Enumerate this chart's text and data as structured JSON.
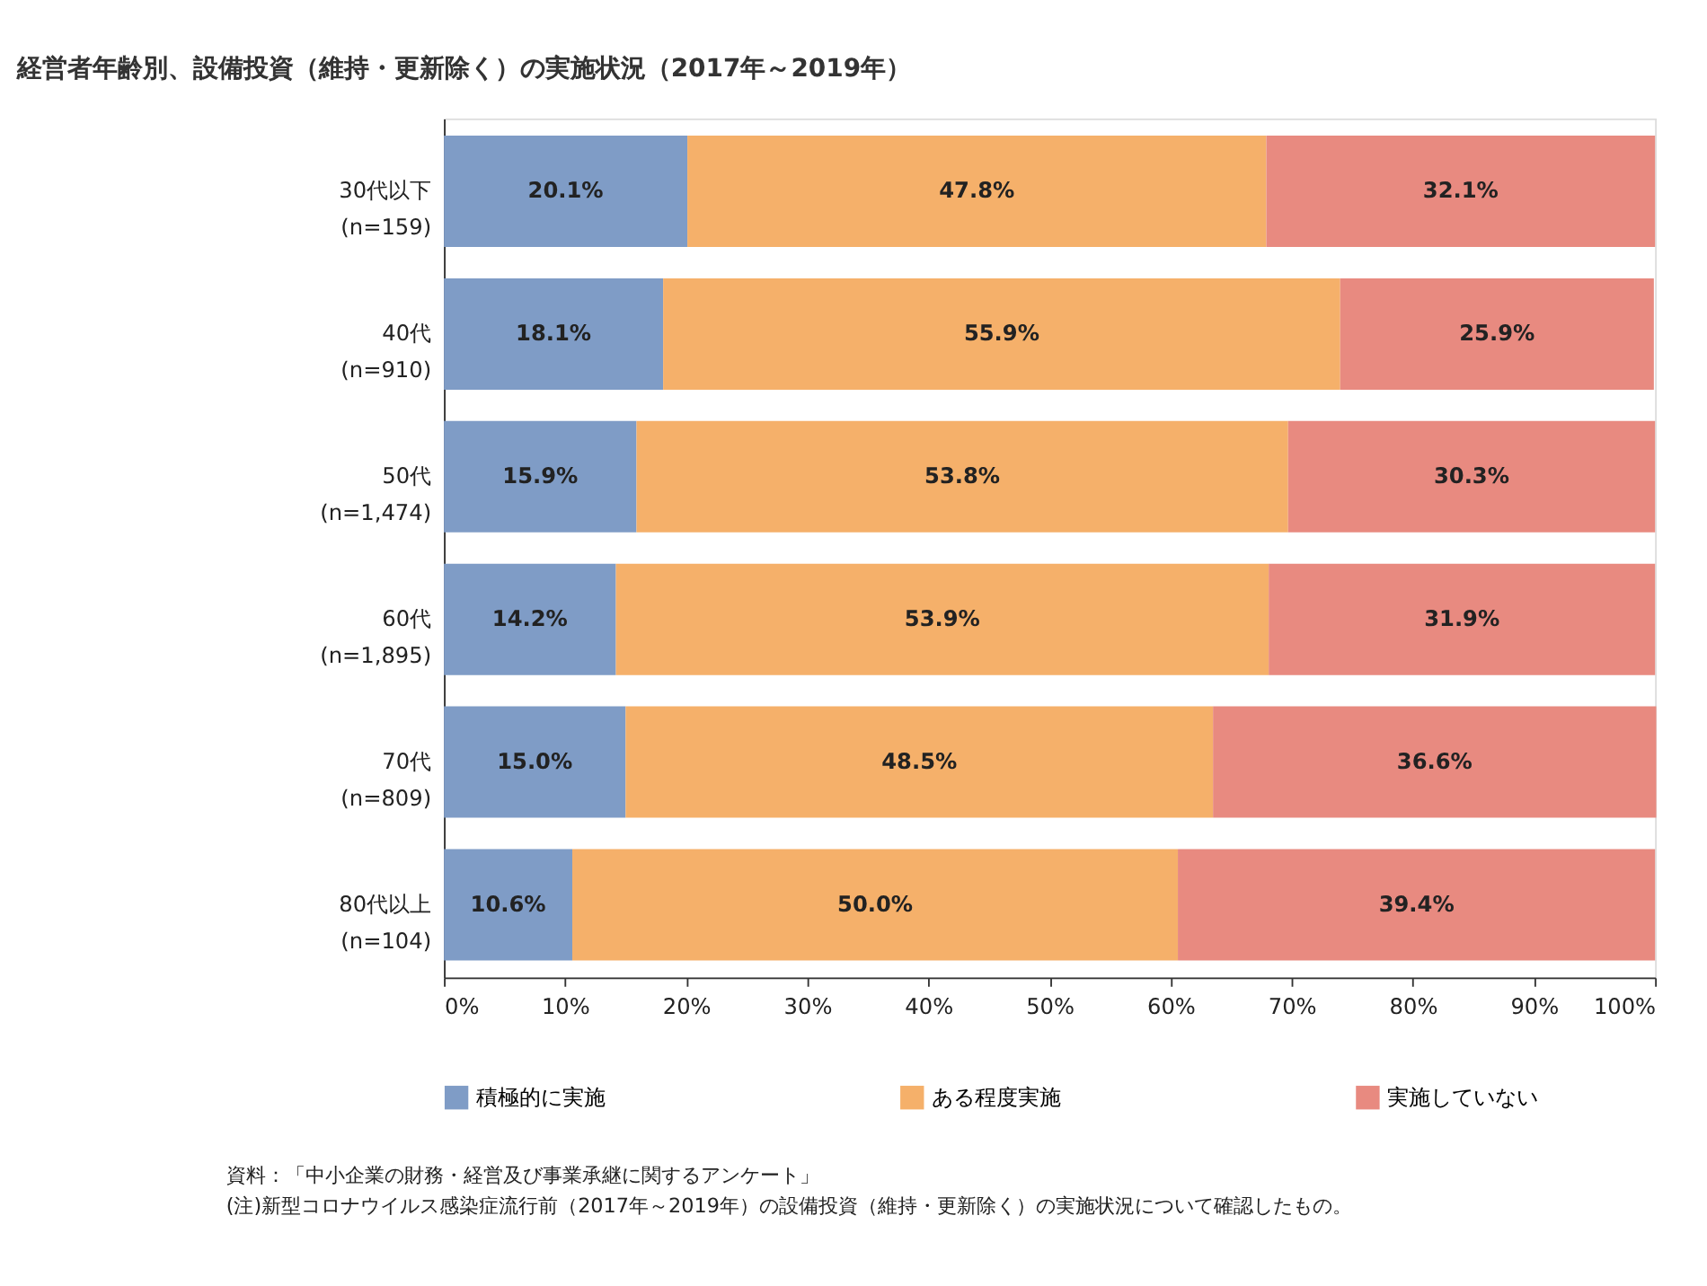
{
  "chart_data": {
    "type": "bar",
    "orientation": "horizontal",
    "stacked": true,
    "title": "経営者年齢別、設備投資（維持・更新除く）の実施状況（2017年～2019年）",
    "categories": [
      "30代以下\n(n=159)",
      "40代\n(n=910)",
      "50代\n(n=1,474)",
      "60代\n(n=1,895)",
      "70代\n(n=809)",
      "80代以上\n(n=104)"
    ],
    "series": [
      {
        "name": "積極的に実施",
        "color": "#7f9cc6",
        "values": [
          20.1,
          18.1,
          15.9,
          14.2,
          15.0,
          10.6
        ],
        "value_labels": [
          "20.1%",
          "18.1%",
          "15.9%",
          "14.2%",
          "15.0%",
          "10.6%"
        ]
      },
      {
        "name": "ある程度実施",
        "color": "#f5b06a",
        "values": [
          47.8,
          55.9,
          53.8,
          53.9,
          48.5,
          50.0
        ],
        "value_labels": [
          "47.8%",
          "55.9%",
          "53.8%",
          "53.9%",
          "48.5%",
          "50.0%"
        ]
      },
      {
        "name": "実施していない",
        "color": "#e88a80",
        "values": [
          32.1,
          25.9,
          30.3,
          31.9,
          36.6,
          39.4
        ],
        "value_labels": [
          "32.1%",
          "25.9%",
          "30.3%",
          "31.9%",
          "36.6%",
          "39.4%"
        ]
      }
    ],
    "xlim": [
      0,
      100
    ],
    "xticks": [
      {
        "value": 0,
        "label": "0%"
      },
      {
        "value": 10,
        "label": "10%"
      },
      {
        "value": 20,
        "label": "20%"
      },
      {
        "value": 30,
        "label": "30%"
      },
      {
        "value": 40,
        "label": "40%"
      },
      {
        "value": 50,
        "label": "50%"
      },
      {
        "value": 60,
        "label": "60%"
      },
      {
        "value": 70,
        "label": "70%"
      },
      {
        "value": 80,
        "label": "80%"
      },
      {
        "value": 90,
        "label": "90%"
      },
      {
        "value": 100,
        "label": "100%"
      }
    ],
    "grid": false,
    "legend": "bottom",
    "annotations": [
      "資料：「中小企業の財務・経営及び事業承継に関するアンケート」",
      "(注)新型コロナウイルス感染症流行前（2017年～2019年）の設備投資（維持・更新除く）の実施状況について確認したもの。"
    ]
  }
}
